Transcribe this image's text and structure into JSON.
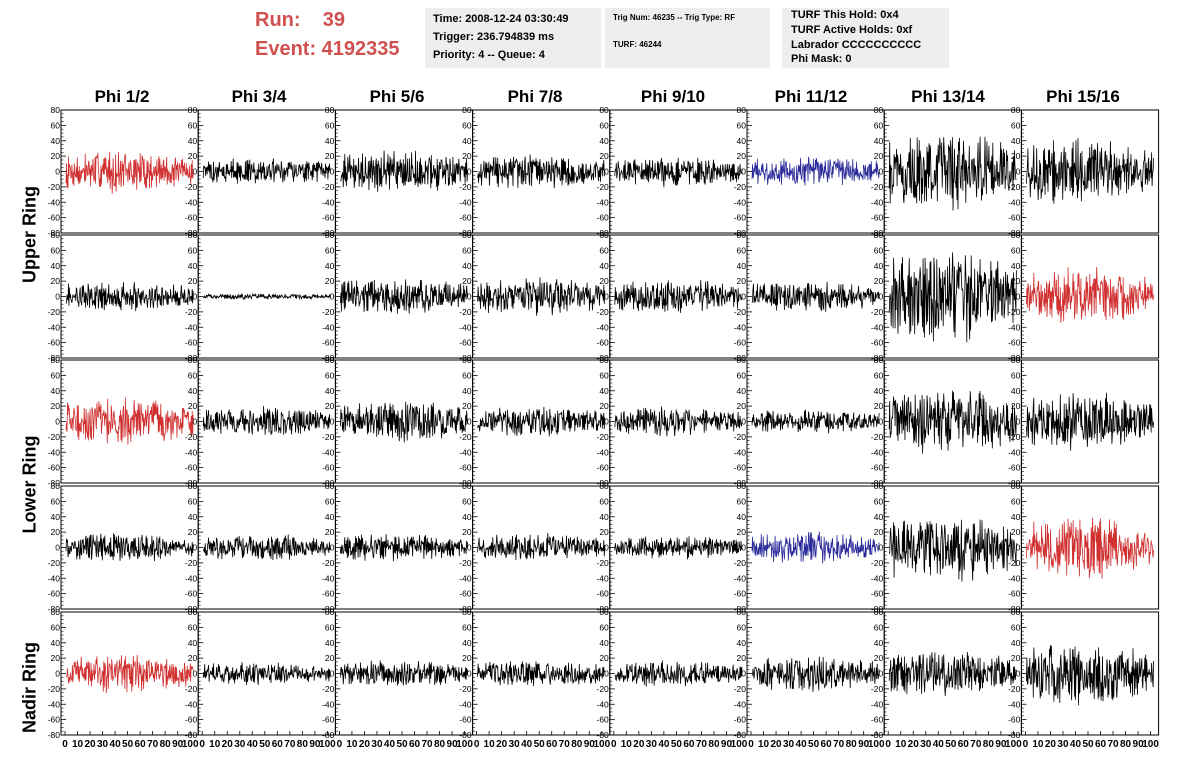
{
  "header": {
    "run_label": "Run:    39",
    "event_label": "Event: 4192335"
  },
  "info_time": {
    "time": "Time: 2008-12-24 03:30:49",
    "trigger": "Trigger: 236.794839 ms",
    "priority": "Priority: 4 -- Queue: 4"
  },
  "info_trig": {
    "trig_line": "Trig Num: 46235 -- Trig Type: RF",
    "turf_line": "TURF: 46244"
  },
  "info_turf": {
    "this_hold": "TURF This Hold: 0x4",
    "active_holds": "TURF Active Holds: 0xf",
    "labrador": "Labrador CCCCCCCCCC",
    "phi_mask": "Phi Mask: 0"
  },
  "columns": [
    "Phi 1/2",
    "Phi 3/4",
    "Phi 5/6",
    "Phi 7/8",
    "Phi 9/10",
    "Phi 11/12",
    "Phi 13/14",
    "Phi 15/16"
  ],
  "row_groups": [
    "Upper Ring",
    "Lower Ring",
    "Nadir Ring"
  ],
  "colors": {
    "normal": "#000000",
    "triggered": "#d03030",
    "polarization_alt": "#2a2a9a"
  },
  "chart_data": {
    "type": "line",
    "xlim": [
      0,
      100
    ],
    "ylim": [
      -80,
      80
    ],
    "y_ticks": [
      80,
      60,
      40,
      20,
      0,
      -20,
      -40,
      -60,
      -80
    ],
    "x_tick_labels": [
      "0",
      "10",
      "20",
      "30",
      "40",
      "50",
      "60",
      "70",
      "80",
      "90",
      "100"
    ],
    "panels": [
      [
        {
          "color": "triggered",
          "amplitude": 22
        },
        {
          "color": "normal",
          "amplitude": 14
        },
        {
          "color": "normal",
          "amplitude": 22
        },
        {
          "color": "normal",
          "amplitude": 18
        },
        {
          "color": "normal",
          "amplitude": 16
        },
        {
          "color": "polarization_alt",
          "amplitude": 16
        },
        {
          "color": "normal",
          "amplitude": 40
        },
        {
          "color": "normal",
          "amplitude": 34
        }
      ],
      [
        {
          "color": "normal",
          "amplitude": 16
        },
        {
          "color": "normal",
          "amplitude": 3
        },
        {
          "color": "normal",
          "amplitude": 20
        },
        {
          "color": "normal",
          "amplitude": 20
        },
        {
          "color": "normal",
          "amplitude": 18
        },
        {
          "color": "normal",
          "amplitude": 16
        },
        {
          "color": "normal",
          "amplitude": 50
        },
        {
          "color": "triggered",
          "amplitude": 30
        }
      ],
      [
        {
          "color": "triggered",
          "amplitude": 25
        },
        {
          "color": "normal",
          "amplitude": 16
        },
        {
          "color": "normal",
          "amplitude": 22
        },
        {
          "color": "normal",
          "amplitude": 16
        },
        {
          "color": "normal",
          "amplitude": 16
        },
        {
          "color": "normal",
          "amplitude": 13
        },
        {
          "color": "normal",
          "amplitude": 34
        },
        {
          "color": "normal",
          "amplitude": 30
        }
      ],
      [
        {
          "color": "normal",
          "amplitude": 15
        },
        {
          "color": "normal",
          "amplitude": 14
        },
        {
          "color": "normal",
          "amplitude": 15
        },
        {
          "color": "normal",
          "amplitude": 15
        },
        {
          "color": "normal",
          "amplitude": 12
        },
        {
          "color": "polarization_alt",
          "amplitude": 16
        },
        {
          "color": "normal",
          "amplitude": 36
        },
        {
          "color": "triggered",
          "amplitude": 32
        }
      ],
      [
        {
          "color": "triggered",
          "amplitude": 20
        },
        {
          "color": "normal",
          "amplitude": 12
        },
        {
          "color": "normal",
          "amplitude": 14
        },
        {
          "color": "normal",
          "amplitude": 14
        },
        {
          "color": "normal",
          "amplitude": 14
        },
        {
          "color": "normal",
          "amplitude": 18
        },
        {
          "color": "normal",
          "amplitude": 24
        },
        {
          "color": "normal",
          "amplitude": 32
        }
      ]
    ]
  }
}
